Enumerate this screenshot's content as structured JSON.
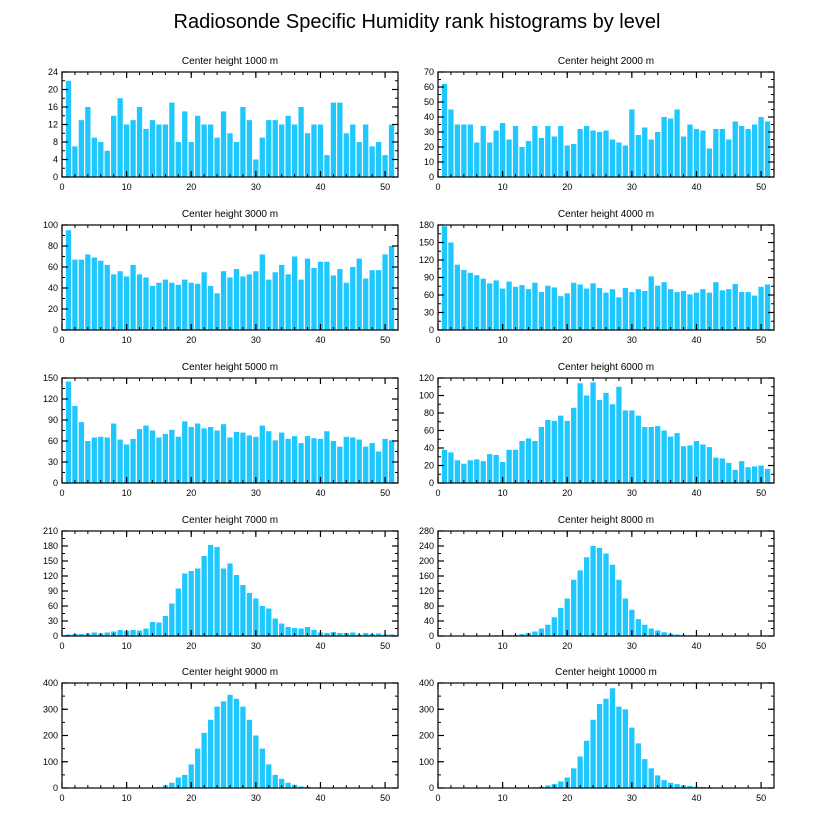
{
  "title": "Radiosonde Specific Humidity rank histograms by level",
  "bar_color": "#1ec8ff",
  "chart_data": [
    {
      "type": "bar",
      "title": "Center height 1000 m",
      "x": [
        1,
        2,
        3,
        4,
        5,
        6,
        7,
        8,
        9,
        10,
        11,
        12,
        13,
        14,
        15,
        16,
        17,
        18,
        19,
        20,
        21,
        22,
        23,
        24,
        25,
        26,
        27,
        28,
        29,
        30,
        31,
        32,
        33,
        34,
        35,
        36,
        37,
        38,
        39,
        40,
        41,
        42,
        43,
        44,
        45,
        46,
        47,
        48,
        49,
        50,
        51
      ],
      "values": [
        22,
        7,
        13,
        16,
        9,
        8,
        6,
        14,
        18,
        12,
        13,
        16,
        11,
        13,
        12,
        12,
        17,
        8,
        15,
        8,
        14,
        12,
        12,
        9,
        15,
        10,
        8,
        16,
        13,
        4,
        9,
        13,
        13,
        12,
        14,
        12,
        16,
        10,
        12,
        12,
        5,
        17,
        17,
        10,
        12,
        8,
        12,
        7,
        8,
        5,
        12
      ],
      "xlim": [
        0,
        52
      ],
      "ylim": [
        0,
        24
      ],
      "xticks": [
        0,
        10,
        20,
        30,
        40,
        50
      ],
      "yticks": [
        0,
        4,
        8,
        12,
        16,
        20,
        24
      ]
    },
    {
      "type": "bar",
      "title": "Center height 2000 m",
      "x": [
        1,
        2,
        3,
        4,
        5,
        6,
        7,
        8,
        9,
        10,
        11,
        12,
        13,
        14,
        15,
        16,
        17,
        18,
        19,
        20,
        21,
        22,
        23,
        24,
        25,
        26,
        27,
        28,
        29,
        30,
        31,
        32,
        33,
        34,
        35,
        36,
        37,
        38,
        39,
        40,
        41,
        42,
        43,
        44,
        45,
        46,
        47,
        48,
        49,
        50,
        51
      ],
      "values": [
        62,
        45,
        35,
        35,
        35,
        23,
        34,
        23,
        31,
        36,
        25,
        34,
        20,
        24,
        34,
        26,
        34,
        27,
        34,
        21,
        22,
        32,
        34,
        31,
        30,
        31,
        25,
        23,
        21,
        45,
        28,
        33,
        25,
        30,
        40,
        39,
        45,
        27,
        35,
        32,
        31,
        19,
        32,
        32,
        25,
        37,
        34,
        32,
        35,
        40,
        37
      ],
      "xlim": [
        0,
        52
      ],
      "ylim": [
        0,
        70
      ],
      "xticks": [
        0,
        10,
        20,
        30,
        40,
        50
      ],
      "yticks": [
        0,
        10,
        20,
        30,
        40,
        50,
        60,
        70
      ]
    },
    {
      "type": "bar",
      "title": "Center height 3000 m",
      "x": [
        1,
        2,
        3,
        4,
        5,
        6,
        7,
        8,
        9,
        10,
        11,
        12,
        13,
        14,
        15,
        16,
        17,
        18,
        19,
        20,
        21,
        22,
        23,
        24,
        25,
        26,
        27,
        28,
        29,
        30,
        31,
        32,
        33,
        34,
        35,
        36,
        37,
        38,
        39,
        40,
        41,
        42,
        43,
        44,
        45,
        46,
        47,
        48,
        49,
        50,
        51
      ],
      "values": [
        95,
        67,
        67,
        72,
        69,
        66,
        62,
        53,
        56,
        51,
        62,
        53,
        50,
        42,
        45,
        48,
        45,
        43,
        48,
        45,
        44,
        55,
        42,
        35,
        56,
        50,
        58,
        51,
        53,
        56,
        72,
        48,
        55,
        62,
        53,
        70,
        48,
        68,
        59,
        65,
        65,
        52,
        58,
        45,
        60,
        68,
        49,
        57,
        57,
        72,
        80
      ],
      "xlim": [
        0,
        52
      ],
      "ylim": [
        0,
        100
      ],
      "xticks": [
        0,
        10,
        20,
        30,
        40,
        50
      ],
      "yticks": [
        0,
        20,
        40,
        60,
        80,
        100
      ]
    },
    {
      "type": "bar",
      "title": "Center height 4000 m",
      "x": [
        1,
        2,
        3,
        4,
        5,
        6,
        7,
        8,
        9,
        10,
        11,
        12,
        13,
        14,
        15,
        16,
        17,
        18,
        19,
        20,
        21,
        22,
        23,
        24,
        25,
        26,
        27,
        28,
        29,
        30,
        31,
        32,
        33,
        34,
        35,
        36,
        37,
        38,
        39,
        40,
        41,
        42,
        43,
        44,
        45,
        46,
        47,
        48,
        49,
        50,
        51
      ],
      "values": [
        178,
        150,
        112,
        103,
        98,
        94,
        88,
        80,
        85,
        71,
        83,
        74,
        77,
        70,
        81,
        65,
        76,
        73,
        58,
        63,
        81,
        78,
        71,
        80,
        72,
        64,
        70,
        56,
        72,
        65,
        70,
        67,
        92,
        76,
        82,
        70,
        65,
        67,
        61,
        64,
        70,
        64,
        82,
        68,
        70,
        79,
        65,
        65,
        59,
        74,
        78
      ],
      "xlim": [
        0,
        52
      ],
      "ylim": [
        0,
        180
      ],
      "xticks": [
        0,
        10,
        20,
        30,
        40,
        50
      ],
      "yticks": [
        0,
        30,
        60,
        90,
        120,
        150,
        180
      ]
    },
    {
      "type": "bar",
      "title": "Center height 5000 m",
      "x": [
        1,
        2,
        3,
        4,
        5,
        6,
        7,
        8,
        9,
        10,
        11,
        12,
        13,
        14,
        15,
        16,
        17,
        18,
        19,
        20,
        21,
        22,
        23,
        24,
        25,
        26,
        27,
        28,
        29,
        30,
        31,
        32,
        33,
        34,
        35,
        36,
        37,
        38,
        39,
        40,
        41,
        42,
        43,
        44,
        45,
        46,
        47,
        48,
        49,
        50,
        51
      ],
      "values": [
        145,
        110,
        87,
        60,
        65,
        66,
        65,
        85,
        62,
        55,
        63,
        77,
        82,
        75,
        65,
        70,
        76,
        66,
        88,
        80,
        85,
        78,
        80,
        75,
        84,
        65,
        73,
        72,
        68,
        66,
        82,
        74,
        61,
        72,
        63,
        67,
        57,
        67,
        64,
        63,
        74,
        60,
        52,
        66,
        65,
        62,
        52,
        57,
        45,
        63,
        61
      ],
      "xlim": [
        0,
        52
      ],
      "ylim": [
        0,
        150
      ],
      "xticks": [
        0,
        10,
        20,
        30,
        40,
        50
      ],
      "yticks": [
        0,
        30,
        60,
        90,
        120,
        150
      ]
    },
    {
      "type": "bar",
      "title": "Center height 6000 m",
      "x": [
        1,
        2,
        3,
        4,
        5,
        6,
        7,
        8,
        9,
        10,
        11,
        12,
        13,
        14,
        15,
        16,
        17,
        18,
        19,
        20,
        21,
        22,
        23,
        24,
        25,
        26,
        27,
        28,
        29,
        30,
        31,
        32,
        33,
        34,
        35,
        36,
        37,
        38,
        39,
        40,
        41,
        42,
        43,
        44,
        45,
        46,
        47,
        48,
        49,
        50,
        51
      ],
      "values": [
        38,
        35,
        26,
        22,
        26,
        27,
        25,
        33,
        32,
        24,
        38,
        38,
        48,
        51,
        48,
        64,
        72,
        71,
        77,
        71,
        86,
        114,
        100,
        115,
        95,
        103,
        90,
        110,
        83,
        83,
        77,
        64,
        64,
        65,
        60,
        53,
        57,
        42,
        43,
        48,
        44,
        41,
        29,
        28,
        23,
        15,
        25,
        18,
        19,
        20,
        16
      ],
      "xlim": [
        0,
        52
      ],
      "ylim": [
        0,
        120
      ],
      "xticks": [
        0,
        10,
        20,
        30,
        40,
        50
      ],
      "yticks": [
        0,
        20,
        40,
        60,
        80,
        100,
        120
      ]
    },
    {
      "type": "bar",
      "title": "Center height 7000 m",
      "x": [
        1,
        2,
        3,
        4,
        5,
        6,
        7,
        8,
        9,
        10,
        11,
        12,
        13,
        14,
        15,
        16,
        17,
        18,
        19,
        20,
        21,
        22,
        23,
        24,
        25,
        26,
        27,
        28,
        29,
        30,
        31,
        32,
        33,
        34,
        35,
        36,
        37,
        38,
        39,
        40,
        41,
        42,
        43,
        44,
        45,
        46,
        47,
        48,
        49,
        50,
        51
      ],
      "values": [
        3,
        4,
        4,
        5,
        7,
        5,
        7,
        9,
        12,
        10,
        12,
        11,
        15,
        28,
        27,
        40,
        65,
        95,
        125,
        130,
        135,
        160,
        182,
        178,
        135,
        145,
        122,
        102,
        86,
        75,
        60,
        55,
        35,
        25,
        18,
        16,
        15,
        18,
        12,
        7,
        6,
        8,
        6,
        6,
        7,
        3,
        6,
        4,
        5,
        3,
        3
      ],
      "xlim": [
        0,
        52
      ],
      "ylim": [
        0,
        210
      ],
      "xticks": [
        0,
        10,
        20,
        30,
        40,
        50
      ],
      "yticks": [
        0,
        30,
        60,
        90,
        120,
        150,
        180,
        210
      ]
    },
    {
      "type": "bar",
      "title": "Center height 8000 m",
      "x": [
        1,
        2,
        3,
        4,
        5,
        6,
        7,
        8,
        9,
        10,
        11,
        12,
        13,
        14,
        15,
        16,
        17,
        18,
        19,
        20,
        21,
        22,
        23,
        24,
        25,
        26,
        27,
        28,
        29,
        30,
        31,
        32,
        33,
        34,
        35,
        36,
        37,
        38,
        39,
        40,
        41,
        42,
        43,
        44,
        45,
        46,
        47,
        48,
        49,
        50,
        51
      ],
      "values": [
        1,
        1,
        1,
        1,
        1,
        1,
        1,
        1,
        2,
        1,
        2,
        3,
        5,
        8,
        12,
        20,
        30,
        50,
        75,
        100,
        150,
        175,
        210,
        240,
        235,
        220,
        190,
        150,
        100,
        70,
        45,
        30,
        20,
        15,
        10,
        6,
        4,
        3,
        2,
        2,
        1,
        1,
        1,
        1,
        1,
        1,
        1,
        1,
        1,
        1,
        1
      ],
      "xlim": [
        0,
        52
      ],
      "ylim": [
        0,
        280
      ],
      "xticks": [
        0,
        10,
        20,
        30,
        40,
        50
      ],
      "yticks": [
        0,
        40,
        80,
        120,
        160,
        200,
        240,
        280
      ]
    },
    {
      "type": "bar",
      "title": "Center height 9000 m",
      "x": [
        1,
        2,
        3,
        4,
        5,
        6,
        7,
        8,
        9,
        10,
        11,
        12,
        13,
        14,
        15,
        16,
        17,
        18,
        19,
        20,
        21,
        22,
        23,
        24,
        25,
        26,
        27,
        28,
        29,
        30,
        31,
        32,
        33,
        34,
        35,
        36,
        37,
        38,
        39,
        40,
        41,
        42,
        43,
        44,
        45,
        46,
        47,
        48,
        49,
        50,
        51
      ],
      "values": [
        0,
        0,
        0,
        0,
        0,
        0,
        0,
        0,
        0,
        0,
        1,
        1,
        1,
        2,
        3,
        10,
        20,
        40,
        50,
        90,
        150,
        210,
        260,
        310,
        330,
        355,
        340,
        310,
        260,
        200,
        150,
        90,
        50,
        35,
        20,
        12,
        6,
        5,
        2,
        1,
        1,
        0,
        0,
        0,
        0,
        0,
        0,
        0,
        0,
        0,
        0
      ],
      "xlim": [
        0,
        52
      ],
      "ylim": [
        0,
        400
      ],
      "xticks": [
        0,
        10,
        20,
        30,
        40,
        50
      ],
      "yticks": [
        0,
        100,
        200,
        300,
        400
      ]
    },
    {
      "type": "bar",
      "title": "Center height 10000 m",
      "x": [
        1,
        2,
        3,
        4,
        5,
        6,
        7,
        8,
        9,
        10,
        11,
        12,
        13,
        14,
        15,
        16,
        17,
        18,
        19,
        20,
        21,
        22,
        23,
        24,
        25,
        26,
        27,
        28,
        29,
        30,
        31,
        32,
        33,
        34,
        35,
        36,
        37,
        38,
        39,
        40,
        41,
        42,
        43,
        44,
        45,
        46,
        47,
        48,
        49,
        50,
        51
      ],
      "values": [
        0,
        0,
        0,
        0,
        0,
        0,
        0,
        0,
        0,
        0,
        0,
        1,
        1,
        2,
        3,
        5,
        10,
        15,
        25,
        40,
        75,
        120,
        180,
        260,
        320,
        340,
        380,
        310,
        300,
        230,
        170,
        110,
        75,
        48,
        30,
        20,
        15,
        10,
        8,
        5,
        4,
        3,
        2,
        1,
        1,
        1,
        0,
        0,
        0,
        0,
        0
      ],
      "xlim": [
        0,
        52
      ],
      "ylim": [
        0,
        400
      ],
      "xticks": [
        0,
        10,
        20,
        30,
        40,
        50
      ],
      "yticks": [
        0,
        100,
        200,
        300,
        400
      ]
    }
  ]
}
